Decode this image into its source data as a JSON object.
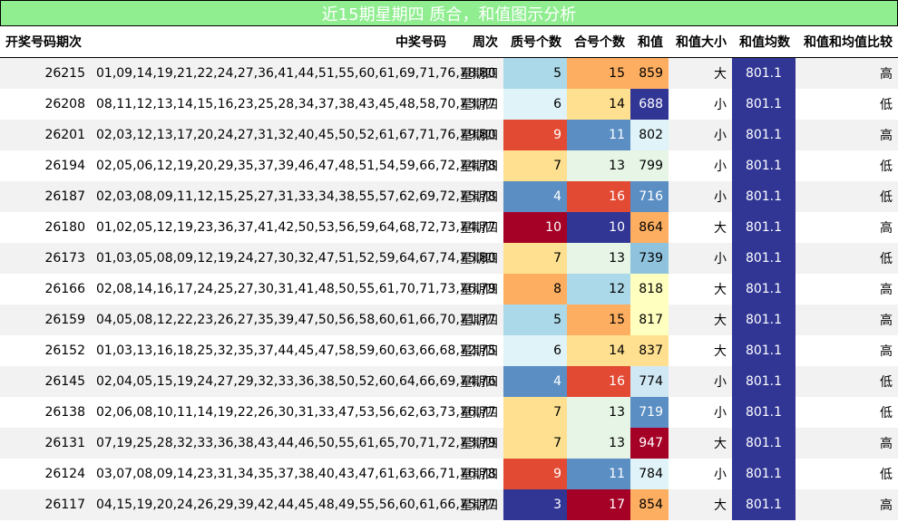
{
  "title": "近15期星期四 质合，和值图示分析",
  "colors": {
    "title_bg": "#90ee90",
    "avg_bg": "#313695",
    "row_alt": "#f2f2f2"
  },
  "headers": {
    "issue": "开奖号码期次",
    "numbers": "中奖号码",
    "weekday": "周次",
    "prime_count": "质号个数",
    "composite_count": "合号个数",
    "sum": "和值",
    "size": "和值大小",
    "avg": "和值均数",
    "compare": "和值和均值比较"
  },
  "rows": [
    {
      "issue": "26215",
      "numbers": "01,09,14,19,21,22,24,27,36,41,44,51,55,60,61,69,71,76,78,80",
      "weekday": "星期四",
      "prime": "5",
      "composite": "15",
      "sum": "859",
      "size": "大",
      "avg": "801.1",
      "compare": "高",
      "prime_bg": "#abd9e9",
      "comp_bg": "#fdae61",
      "sum_bg": "#fdae61"
    },
    {
      "issue": "26208",
      "numbers": "08,11,12,13,14,15,16,23,25,28,34,37,38,43,45,48,58,70,73,77",
      "weekday": "星期四",
      "prime": "6",
      "composite": "14",
      "sum": "688",
      "size": "小",
      "avg": "801.1",
      "compare": "低",
      "prime_bg": "#e0f3f8",
      "comp_bg": "#fee090",
      "sum_bg": "#313695"
    },
    {
      "issue": "26201",
      "numbers": "02,03,12,13,17,20,24,27,31,32,40,45,50,52,61,67,71,76,79,80",
      "weekday": "星期四",
      "prime": "9",
      "composite": "11",
      "sum": "802",
      "size": "小",
      "avg": "801.1",
      "compare": "高",
      "prime_bg": "#e34a33",
      "comp_bg": "#5b8fc4",
      "sum_bg": "#e0f3f8"
    },
    {
      "issue": "26194",
      "numbers": "02,05,06,12,19,20,29,35,37,39,46,47,48,51,54,59,66,72,74,78",
      "weekday": "星期四",
      "prime": "7",
      "composite": "13",
      "sum": "799",
      "size": "小",
      "avg": "801.1",
      "compare": "低",
      "prime_bg": "#fee090",
      "comp_bg": "#e6f5e6",
      "sum_bg": "#e6f5e6"
    },
    {
      "issue": "26187",
      "numbers": "02,03,08,09,11,12,15,25,27,31,33,34,38,55,57,62,69,72,75,78",
      "weekday": "星期四",
      "prime": "4",
      "composite": "16",
      "sum": "716",
      "size": "小",
      "avg": "801.1",
      "compare": "低",
      "prime_bg": "#5b8fc4",
      "comp_bg": "#e34a33",
      "sum_bg": "#5b8fc4"
    },
    {
      "issue": "26180",
      "numbers": "01,02,05,12,19,23,36,37,41,42,50,53,56,59,64,68,72,73,74,77",
      "weekday": "星期四",
      "prime": "10",
      "composite": "10",
      "sum": "864",
      "size": "大",
      "avg": "801.1",
      "compare": "高",
      "prime_bg": "#a50026",
      "comp_bg": "#313695",
      "sum_bg": "#fdae61"
    },
    {
      "issue": "26173",
      "numbers": "01,03,05,08,09,12,19,24,27,30,32,47,51,52,59,64,67,74,75,80",
      "weekday": "星期四",
      "prime": "7",
      "composite": "13",
      "sum": "739",
      "size": "小",
      "avg": "801.1",
      "compare": "低",
      "prime_bg": "#fee090",
      "comp_bg": "#e6f5e6",
      "sum_bg": "#8fc3dd"
    },
    {
      "issue": "26166",
      "numbers": "02,08,14,16,17,24,25,27,30,31,41,48,50,55,61,70,71,73,76,79",
      "weekday": "星期四",
      "prime": "8",
      "composite": "12",
      "sum": "818",
      "size": "大",
      "avg": "801.1",
      "compare": "高",
      "prime_bg": "#fdae61",
      "comp_bg": "#abd9e9",
      "sum_bg": "#ffffbf"
    },
    {
      "issue": "26159",
      "numbers": "04,05,08,12,22,23,26,27,35,39,47,50,56,58,60,61,66,70,71,77",
      "weekday": "星期四",
      "prime": "5",
      "composite": "15",
      "sum": "817",
      "size": "大",
      "avg": "801.1",
      "compare": "高",
      "prime_bg": "#abd9e9",
      "comp_bg": "#fdae61",
      "sum_bg": "#ffffbf"
    },
    {
      "issue": "26152",
      "numbers": "01,03,13,16,18,25,32,35,37,44,45,47,58,59,60,63,66,68,72,75",
      "weekday": "星期四",
      "prime": "6",
      "composite": "14",
      "sum": "837",
      "size": "大",
      "avg": "801.1",
      "compare": "高",
      "prime_bg": "#e0f3f8",
      "comp_bg": "#fee090",
      "sum_bg": "#fee090"
    },
    {
      "issue": "26145",
      "numbers": "02,04,05,15,19,24,27,29,32,33,36,38,50,52,60,64,66,69,74,76",
      "weekday": "星期四",
      "prime": "4",
      "composite": "16",
      "sum": "774",
      "size": "小",
      "avg": "801.1",
      "compare": "低",
      "prime_bg": "#5b8fc4",
      "comp_bg": "#e34a33",
      "sum_bg": "#cfe8f3"
    },
    {
      "issue": "26138",
      "numbers": "02,06,08,10,11,14,19,22,26,30,31,33,47,53,56,62,63,73,76,77",
      "weekday": "星期四",
      "prime": "7",
      "composite": "13",
      "sum": "719",
      "size": "小",
      "avg": "801.1",
      "compare": "低",
      "prime_bg": "#fee090",
      "comp_bg": "#e6f5e6",
      "sum_bg": "#5b8fc4"
    },
    {
      "issue": "26131",
      "numbers": "07,19,25,28,32,33,36,38,43,44,46,50,55,61,65,70,71,72,73,79",
      "weekday": "星期四",
      "prime": "7",
      "composite": "13",
      "sum": "947",
      "size": "大",
      "avg": "801.1",
      "compare": "高",
      "prime_bg": "#fee090",
      "comp_bg": "#e6f5e6",
      "sum_bg": "#a50026"
    },
    {
      "issue": "26124",
      "numbers": "03,07,08,09,14,23,31,34,35,37,38,40,43,47,61,63,66,71,76,78",
      "weekday": "星期四",
      "prime": "9",
      "composite": "11",
      "sum": "784",
      "size": "小",
      "avg": "801.1",
      "compare": "低",
      "prime_bg": "#e34a33",
      "comp_bg": "#5b8fc4",
      "sum_bg": "#e0f3f8"
    },
    {
      "issue": "26117",
      "numbers": "04,15,19,20,24,26,29,39,42,44,45,48,49,55,56,60,61,66,75,77",
      "weekday": "星期四",
      "prime": "3",
      "composite": "17",
      "sum": "854",
      "size": "大",
      "avg": "801.1",
      "compare": "高",
      "prime_bg": "#313695",
      "comp_bg": "#a50026",
      "sum_bg": "#fdae61"
    }
  ]
}
